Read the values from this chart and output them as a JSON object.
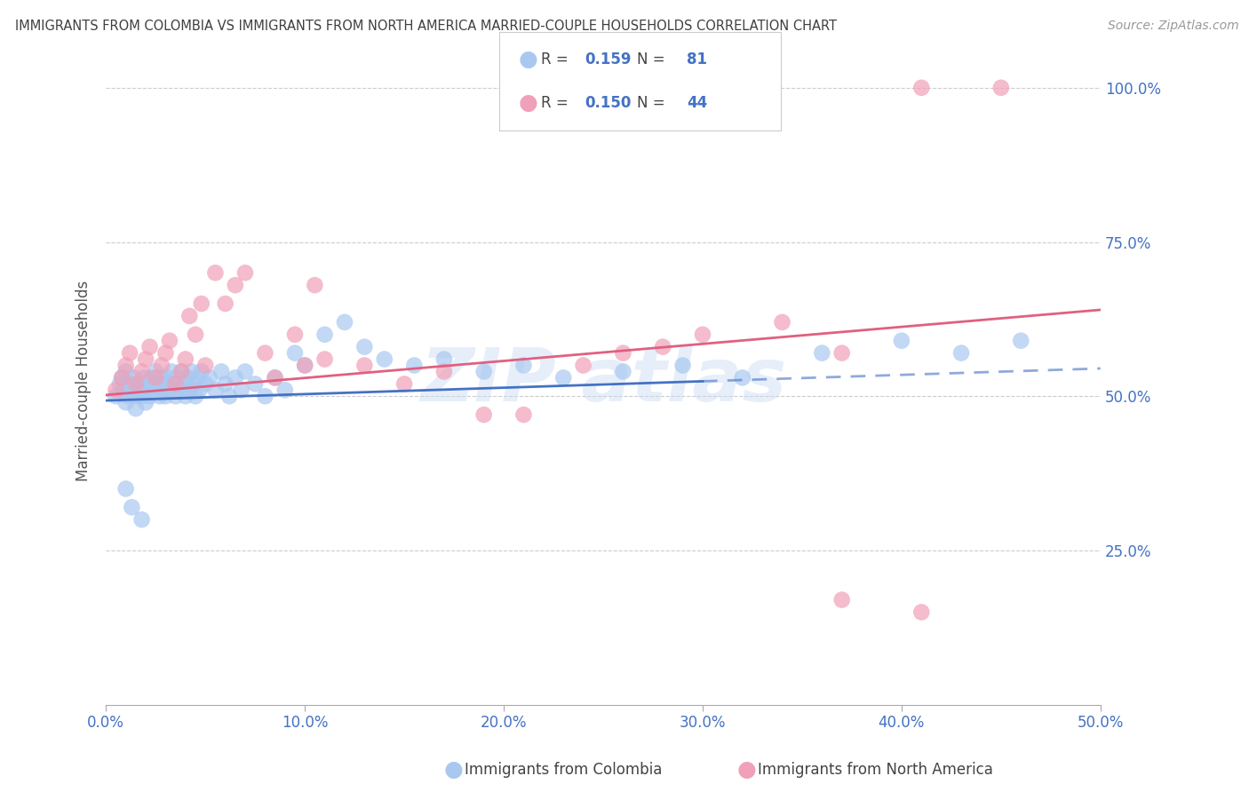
{
  "title": "IMMIGRANTS FROM COLOMBIA VS IMMIGRANTS FROM NORTH AMERICA MARRIED-COUPLE HOUSEHOLDS CORRELATION CHART",
  "source": "Source: ZipAtlas.com",
  "ylabel": "Married-couple Households",
  "xlim": [
    0.0,
    0.5
  ],
  "ylim": [
    0.0,
    1.05
  ],
  "xtick_labels": [
    "0.0%",
    "10.0%",
    "20.0%",
    "30.0%",
    "40.0%",
    "50.0%"
  ],
  "xtick_vals": [
    0.0,
    0.1,
    0.2,
    0.3,
    0.4,
    0.5
  ],
  "ytick_labels": [
    "25.0%",
    "50.0%",
    "75.0%",
    "100.0%"
  ],
  "ytick_vals": [
    0.25,
    0.5,
    0.75,
    1.0
  ],
  "color_blue": "#a8c8f0",
  "color_pink": "#f0a0b8",
  "color_blue_line": "#4472c4",
  "color_pink_line": "#e06080",
  "color_axis_labels": "#4472c4",
  "color_title": "#404040",
  "watermark_color": "#c8daf4",
  "blue_scatter_x": [
    0.005,
    0.007,
    0.008,
    0.009,
    0.01,
    0.01,
    0.011,
    0.012,
    0.013,
    0.014,
    0.015,
    0.015,
    0.016,
    0.017,
    0.018,
    0.019,
    0.02,
    0.02,
    0.021,
    0.022,
    0.023,
    0.024,
    0.025,
    0.026,
    0.027,
    0.028,
    0.029,
    0.03,
    0.03,
    0.031,
    0.032,
    0.033,
    0.034,
    0.035,
    0.036,
    0.037,
    0.038,
    0.039,
    0.04,
    0.041,
    0.042,
    0.043,
    0.044,
    0.045,
    0.046,
    0.047,
    0.048,
    0.05,
    0.052,
    0.055,
    0.058,
    0.06,
    0.062,
    0.065,
    0.068,
    0.07,
    0.075,
    0.08,
    0.085,
    0.09,
    0.095,
    0.1,
    0.11,
    0.12,
    0.13,
    0.14,
    0.155,
    0.17,
    0.19,
    0.21,
    0.23,
    0.26,
    0.29,
    0.32,
    0.36,
    0.4,
    0.43,
    0.46,
    0.01,
    0.013,
    0.018
  ],
  "blue_scatter_y": [
    0.5,
    0.52,
    0.53,
    0.51,
    0.49,
    0.54,
    0.5,
    0.52,
    0.51,
    0.53,
    0.5,
    0.48,
    0.51,
    0.52,
    0.5,
    0.53,
    0.51,
    0.49,
    0.52,
    0.5,
    0.53,
    0.51,
    0.54,
    0.52,
    0.5,
    0.53,
    0.51,
    0.52,
    0.5,
    0.53,
    0.51,
    0.54,
    0.52,
    0.5,
    0.53,
    0.51,
    0.54,
    0.52,
    0.5,
    0.53,
    0.51,
    0.54,
    0.52,
    0.5,
    0.53,
    0.51,
    0.54,
    0.52,
    0.53,
    0.51,
    0.54,
    0.52,
    0.5,
    0.53,
    0.51,
    0.54,
    0.52,
    0.5,
    0.53,
    0.51,
    0.57,
    0.55,
    0.6,
    0.62,
    0.58,
    0.56,
    0.55,
    0.56,
    0.54,
    0.55,
    0.53,
    0.54,
    0.55,
    0.53,
    0.57,
    0.59,
    0.57,
    0.59,
    0.35,
    0.32,
    0.3
  ],
  "pink_scatter_x": [
    0.005,
    0.008,
    0.01,
    0.012,
    0.015,
    0.018,
    0.02,
    0.022,
    0.025,
    0.028,
    0.03,
    0.032,
    0.035,
    0.038,
    0.04,
    0.042,
    0.045,
    0.048,
    0.05,
    0.055,
    0.06,
    0.065,
    0.07,
    0.08,
    0.085,
    0.095,
    0.1,
    0.105,
    0.11,
    0.13,
    0.15,
    0.17,
    0.19,
    0.21,
    0.24,
    0.26,
    0.28,
    0.3,
    0.34,
    0.37,
    0.41,
    0.45,
    0.37,
    0.41
  ],
  "pink_scatter_y": [
    0.51,
    0.53,
    0.55,
    0.57,
    0.52,
    0.54,
    0.56,
    0.58,
    0.53,
    0.55,
    0.57,
    0.59,
    0.52,
    0.54,
    0.56,
    0.63,
    0.6,
    0.65,
    0.55,
    0.7,
    0.65,
    0.68,
    0.7,
    0.57,
    0.53,
    0.6,
    0.55,
    0.68,
    0.56,
    0.55,
    0.52,
    0.54,
    0.47,
    0.47,
    0.55,
    0.57,
    0.58,
    0.6,
    0.62,
    0.57,
    1.0,
    1.0,
    0.17,
    0.15
  ],
  "trendline_blue_x0": 0.0,
  "trendline_blue_y0": 0.493,
  "trendline_blue_x1": 0.5,
  "trendline_blue_y1": 0.545,
  "trendline_blue_solid_x1": 0.3,
  "trendline_pink_x0": 0.0,
  "trendline_pink_y0": 0.502,
  "trendline_pink_x1": 0.5,
  "trendline_pink_y1": 0.64,
  "legend_r1": "0.159",
  "legend_n1": "81",
  "legend_r2": "0.150",
  "legend_n2": "44",
  "label_colombia": "Immigrants from Colombia",
  "label_north_america": "Immigrants from North America"
}
